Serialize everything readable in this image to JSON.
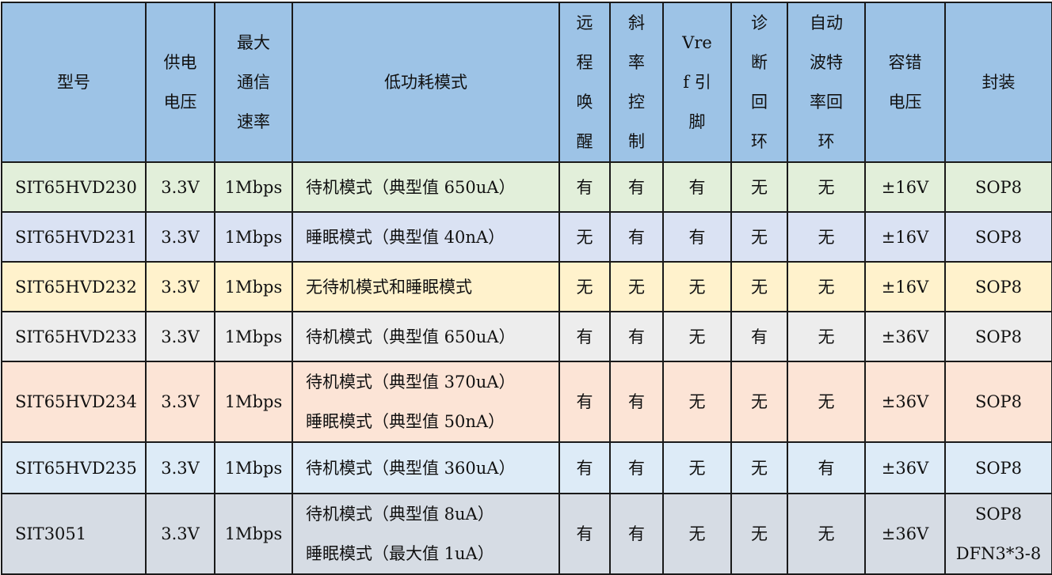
{
  "header_color": "#9dc3e6",
  "headers": [
    "型号",
    "供电\n电压",
    "最大\n通信\n速率",
    "低功耗模式",
    "远\n程\n唤\n醒",
    "斜\n率\n控\n制",
    "Vre\nf 引\n脚",
    "诊\n断\n回\n环",
    "自动\n波特\n率回\n环",
    "容错\n电压",
    "封装"
  ],
  "rows": [
    {
      "color": "#e2efda",
      "cells": [
        "SIT65HVD230",
        "3.3V",
        "1Mbps",
        "待机模式（典型值 650uA）",
        "有",
        "有",
        "有",
        "无",
        "无",
        "±16V",
        "SOP8"
      ]
    },
    {
      "color": "#dae2f3",
      "cells": [
        "SIT65HVD231",
        "3.3V",
        "1Mbps",
        "睡眠模式（典型值 40nA）",
        "无",
        "有",
        "有",
        "无",
        "无",
        "±16V",
        "SOP8"
      ]
    },
    {
      "color": "#fff2cc",
      "cells": [
        "SIT65HVD232",
        "3.3V",
        "1Mbps",
        "无待机模式和睡眠模式",
        "无",
        "无",
        "无",
        "无",
        "无",
        "±16V",
        "SOP8"
      ]
    },
    {
      "color": "#ededed",
      "cells": [
        "SIT65HVD233",
        "3.3V",
        "1Mbps",
        "待机模式（典型值 650uA）",
        "有",
        "有",
        "无",
        "有",
        "无",
        "±36V",
        "SOP8"
      ]
    },
    {
      "color": "#fce4d6",
      "cells": [
        "SIT65HVD234",
        "3.3V",
        "1Mbps",
        "待机模式（典型值 370uA）\n睡眠模式（典型值 50nA）",
        "有",
        "有",
        "无",
        "无",
        "无",
        "±36V",
        "SOP8"
      ]
    },
    {
      "color": "#ddebf7",
      "cells": [
        "SIT65HVD235",
        "3.3V",
        "1Mbps",
        "待机模式（典型值 360uA）",
        "有",
        "有",
        "无",
        "无",
        "有",
        "±36V",
        "SOP8"
      ]
    },
    {
      "color": "#d6dce4",
      "cells": [
        "SIT3051",
        "3.3V",
        "1Mbps",
        "待机模式（典型值 8uA）\n睡眠模式（最大值 1uA）",
        "有",
        "有",
        "无",
        "无",
        "无",
        "±36V",
        "SOP8\nDFN3*3-8"
      ]
    }
  ]
}
